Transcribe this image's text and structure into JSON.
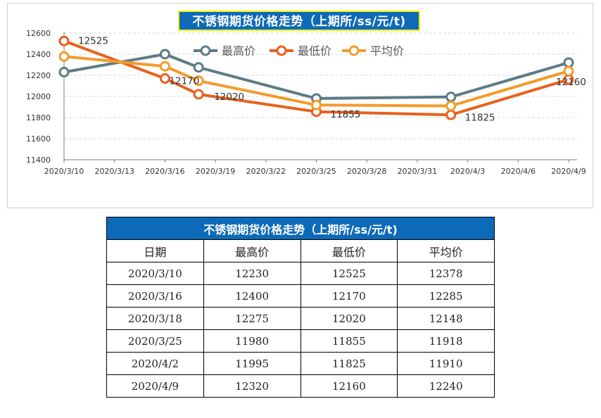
{
  "chart": {
    "title": "不锈钢期货价格走势（上期所/ss/元/t)"
  },
  "chart_data": {
    "type": "line",
    "title": "不锈钢期货价格走势（上期所/ss/元/t)",
    "x": [
      "2020/3/10",
      "2020/3/16",
      "2020/3/18",
      "2020/3/25",
      "2020/4/2",
      "2020/4/9"
    ],
    "x_days": [
      0,
      6,
      8,
      15,
      23,
      30
    ],
    "x_ticks": [
      "2020/3/10",
      "2020/3/13",
      "2020/3/16",
      "2020/3/19",
      "2020/3/22",
      "2020/3/25",
      "2020/3/28",
      "2020/3/31",
      "2020/4/3",
      "2020/4/6",
      "2020/4/9"
    ],
    "y_ticks": [
      "11400",
      "11600",
      "11800",
      "12000",
      "12200",
      "12400",
      "12600"
    ],
    "ylim": [
      11400,
      12600
    ],
    "grid": true,
    "legend_position": "top",
    "series": [
      {
        "name": "最高价",
        "color": "#5d7b87",
        "values": [
          12230,
          12400,
          12275,
          11980,
          11995,
          12320
        ]
      },
      {
        "name": "最低价",
        "color": "#e8611e",
        "values": [
          12525,
          12170,
          12020,
          11855,
          11825,
          12160
        ]
      },
      {
        "name": "平均价",
        "color": "#f29b2b",
        "values": [
          12378,
          12285,
          12148,
          11918,
          11910,
          12240
        ]
      }
    ],
    "data_labels": {
      "series": "最低价",
      "values": [
        "12525",
        "12170",
        "12020",
        "11855",
        "11825",
        "12160"
      ]
    }
  },
  "table": {
    "title": "不锈钢期货价格走势（上期所/ss/元/t)",
    "headers": [
      "日期",
      "最高价",
      "最低价",
      "平均价"
    ],
    "rows": [
      [
        "2020/3/10",
        "12230",
        "12525",
        "12378"
      ],
      [
        "2020/3/16",
        "12400",
        "12170",
        "12285"
      ],
      [
        "2020/3/18",
        "12275",
        "12020",
        "12148"
      ],
      [
        "2020/3/25",
        "11980",
        "11855",
        "11918"
      ],
      [
        "2020/4/2",
        "11995",
        "11825",
        "11910"
      ],
      [
        "2020/4/9",
        "12320",
        "12160",
        "12240"
      ]
    ]
  }
}
